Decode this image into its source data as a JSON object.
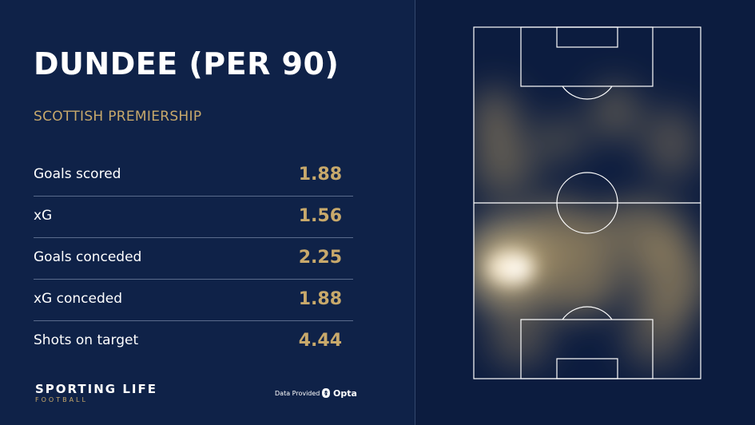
{
  "title": "DUNDEE (PER 90)",
  "subtitle": "SCOTTISH PREMIERSHIP",
  "stats": [
    {
      "label": "Goals scored",
      "value": "1.88"
    },
    {
      "label": "xG",
      "value": "1.56"
    },
    {
      "label": "Goals conceded",
      "value": "2.25"
    },
    {
      "label": "xG conceded",
      "value": "1.88"
    },
    {
      "label": "Shots on target",
      "value": "4.44"
    }
  ],
  "brand": {
    "name": "SPORTING LIFE",
    "sub": "FOOTBALL"
  },
  "data_provider": {
    "prefix": "Data Provided by",
    "name": "Opta"
  },
  "colors": {
    "accent": "#c8a96b",
    "background": "#0f2248",
    "pitch_bg": "#0c1c3f"
  },
  "icons": [
    "opta-logo-icon"
  ]
}
